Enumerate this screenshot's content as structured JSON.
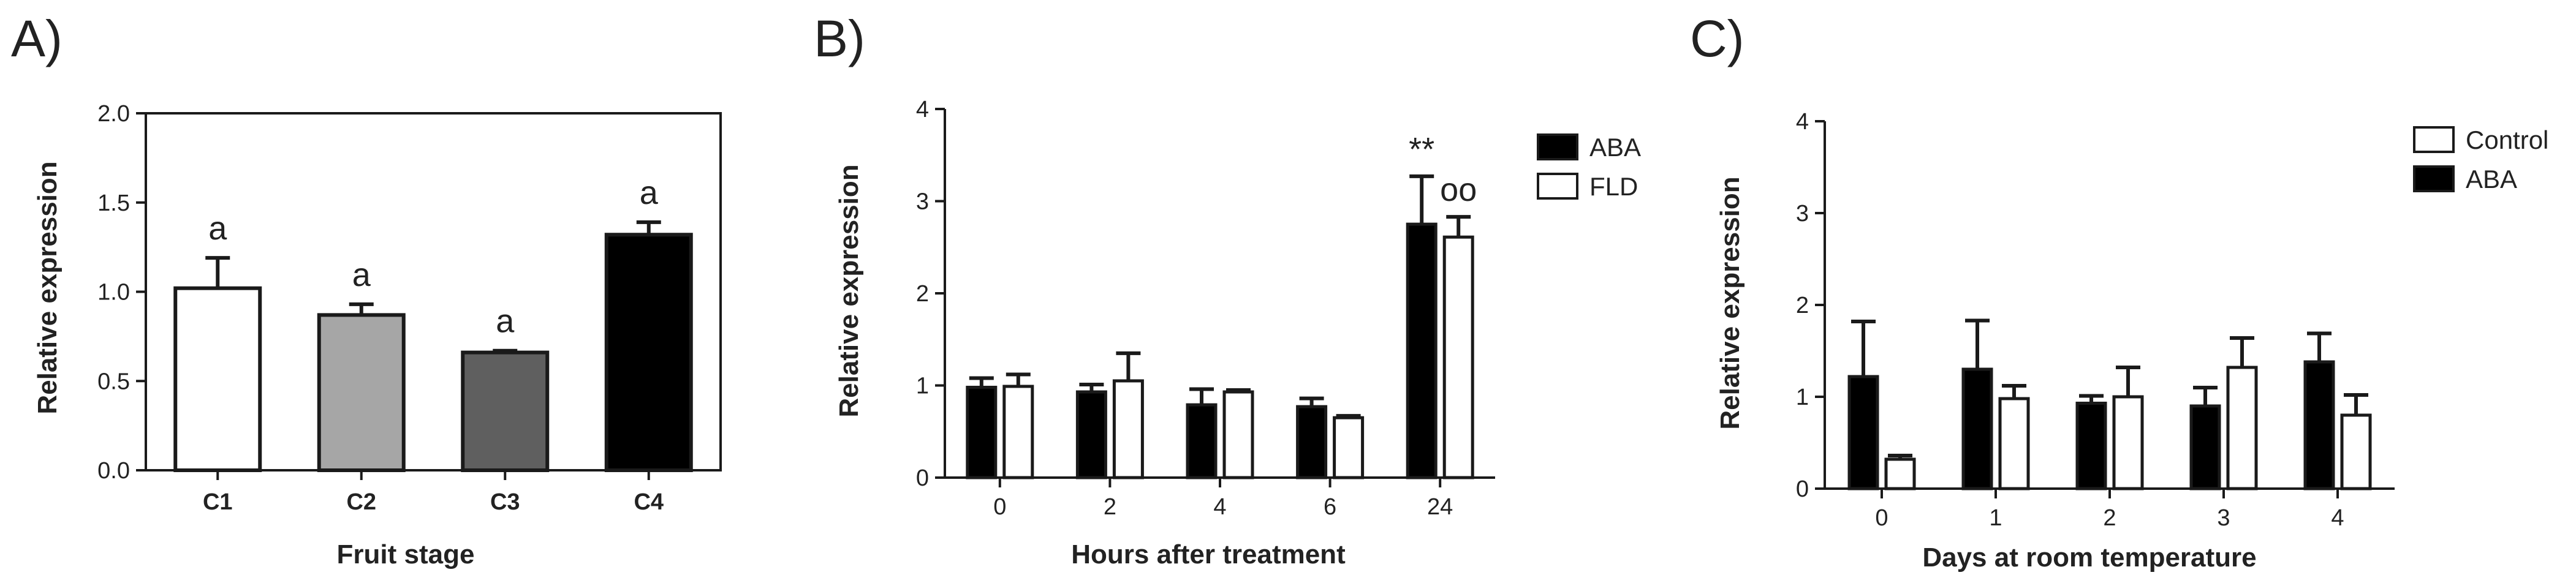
{
  "figure": {
    "colors": {
      "ink": "#1a1a1a",
      "white": "#ffffff",
      "c1": "#ffffff",
      "c2": "#a6a6a6",
      "c3": "#5f5f5f",
      "c4": "#000000"
    }
  },
  "chart_data": [
    {
      "panel": "A)",
      "type": "bar",
      "xlabel": "Fruit stage",
      "ylabel": "Relative expression",
      "ylim": [
        0,
        2.0
      ],
      "yticks": [
        0,
        0.5,
        1.0,
        1.5,
        2.0
      ],
      "ytick_labels": [
        "0.0",
        "0.5",
        "1.0",
        "1.5",
        "2.0"
      ],
      "categories": [
        "C1",
        "C2",
        "C3",
        "C4"
      ],
      "values": [
        1.02,
        0.87,
        0.66,
        1.32
      ],
      "errors": [
        0.17,
        0.06,
        0.01,
        0.07
      ],
      "bar_colors": [
        "#ffffff",
        "#a6a6a6",
        "#5f5f5f",
        "#000000"
      ],
      "bar_labels": [
        "a",
        "a",
        "a",
        "a"
      ],
      "grid": false,
      "legend": "none"
    },
    {
      "panel": "B)",
      "type": "bar",
      "xlabel": "Hours after treatment",
      "ylabel": "Relative expression",
      "ylim": [
        0,
        4
      ],
      "yticks": [
        0,
        1,
        2,
        3,
        4
      ],
      "ytick_labels": [
        "0",
        "1",
        "2",
        "3",
        "4"
      ],
      "categories": [
        "0",
        "2",
        "4",
        "6",
        "24"
      ],
      "series": [
        {
          "name": "ABA",
          "fill": "#000000",
          "values": [
            0.98,
            0.93,
            0.79,
            0.77,
            2.75
          ],
          "errors": [
            0.1,
            0.08,
            0.17,
            0.09,
            0.52
          ]
        },
        {
          "name": "FLD",
          "fill": "#ffffff",
          "values": [
            0.99,
            1.05,
            0.93,
            0.65,
            2.61
          ],
          "errors": [
            0.13,
            0.3,
            0.02,
            0.02,
            0.22
          ]
        }
      ],
      "annotations": [
        {
          "category": "24",
          "series": "ABA",
          "text": "**"
        },
        {
          "category": "24",
          "series": "FLD",
          "text": "oo"
        }
      ],
      "grid": false,
      "legend": "right"
    },
    {
      "panel": "C)",
      "type": "bar",
      "xlabel": "Days at room temperature",
      "ylabel": "Relative expression",
      "ylim": [
        0,
        4
      ],
      "yticks": [
        0,
        1,
        2,
        3,
        4
      ],
      "ytick_labels": [
        "0",
        "1",
        "2",
        "3",
        "4"
      ],
      "categories": [
        "0",
        "1",
        "2",
        "3",
        "4"
      ],
      "series": [
        {
          "name": "Control",
          "fill": "#ffffff",
          "values": [
            0.32,
            0.98,
            1.0,
            1.32,
            0.8
          ],
          "errors": [
            0.04,
            0.14,
            0.32,
            0.32,
            0.22
          ]
        },
        {
          "name": "ABA",
          "fill": "#000000",
          "values": [
            1.22,
            1.3,
            0.93,
            0.9,
            1.38
          ],
          "errors": [
            0.6,
            0.53,
            0.08,
            0.2,
            0.31
          ]
        }
      ],
      "bar_order": [
        "ABA",
        "Control"
      ],
      "grid": false,
      "legend": "right"
    }
  ]
}
